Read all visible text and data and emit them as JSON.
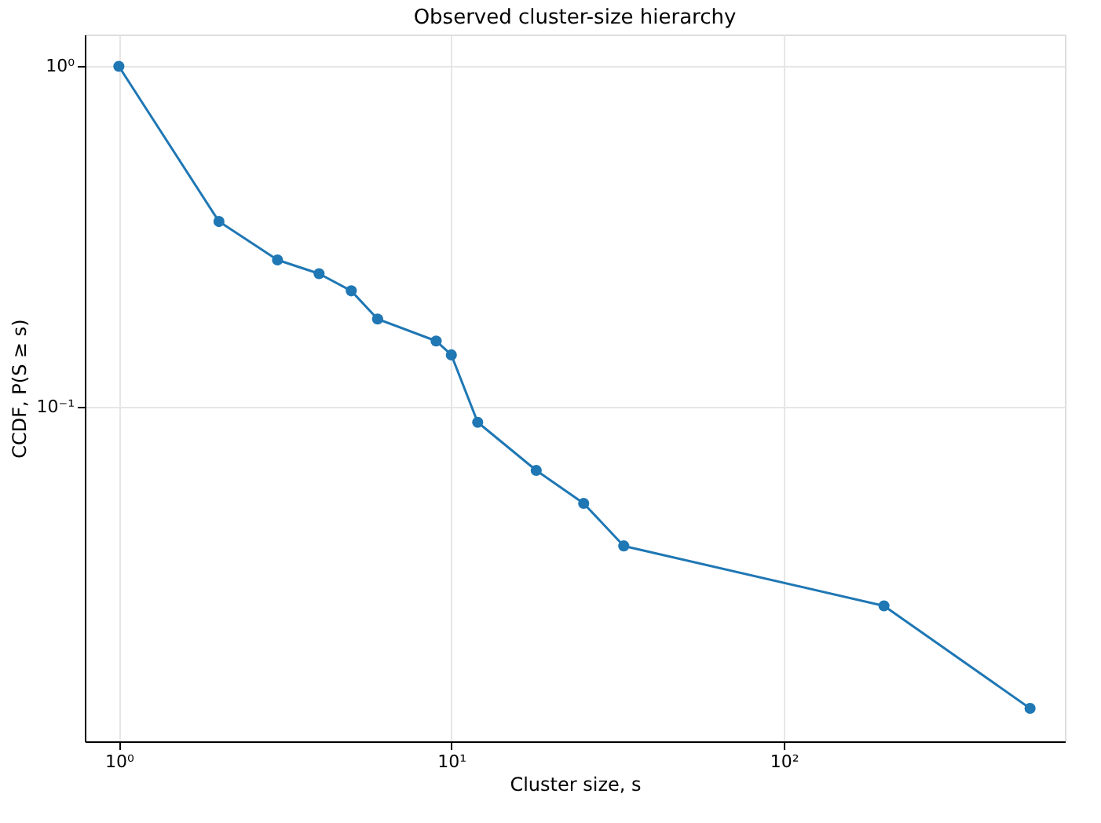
{
  "chart_data": {
    "type": "line",
    "title": "Observed cluster-size hierarchy",
    "xlabel": "Cluster size, s",
    "ylabel": "CCDF, P(S ≥ s)",
    "x": [
      1,
      2,
      3,
      4,
      5,
      6,
      9,
      10,
      12,
      18,
      25,
      33,
      200,
      550
    ],
    "series": [
      {
        "color": "#1f77b4",
        "values": [
          1,
          0.35,
          0.27,
          0.246,
          0.219,
          0.181,
          0.156,
          0.142,
          0.09,
          0.065,
          0.052,
          0.039,
          0.026,
          0.013
        ]
      }
    ],
    "log": "xy",
    "xlim": [
      0.79,
      700
    ],
    "ylim": [
      0.0104,
      1.24
    ],
    "xticks": [
      {
        "value": 1,
        "label": "10⁰"
      },
      {
        "value": 10,
        "label": "10¹"
      },
      {
        "value": 100,
        "label": "10²"
      }
    ],
    "yticks": [
      {
        "value": 0.1,
        "label": "10⁻¹"
      },
      {
        "value": 1,
        "label": "10⁰"
      }
    ],
    "grid": true,
    "marker": "circle",
    "line_style": "solid"
  }
}
